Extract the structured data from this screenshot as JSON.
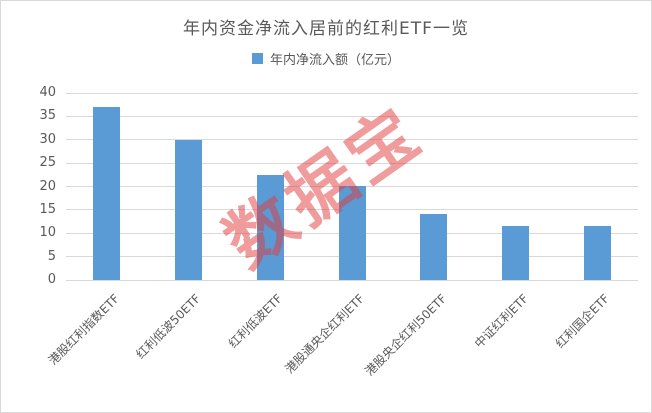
{
  "chart": {
    "title": "年内资金净流入居前的红利ETF一览",
    "legend_label": "年内净流入额（亿元）"
  },
  "watermark": {
    "text": "数据宝"
  },
  "colors": {
    "bar": "#5B9BD5",
    "grid": "#D9D9D9",
    "axis_text": "#595959",
    "title_text": "#595959",
    "watermark": "rgba(226,58,58,0.5)",
    "border": "#D9D9D9",
    "background": "#FFFFFF"
  },
  "chart_data": {
    "type": "bar",
    "title": "年内资金净流入居前的红利ETF一览",
    "legend": [
      "年内净流入额（亿元）"
    ],
    "legend_position": "top",
    "categories": [
      "港股红利指数ETF",
      "红利低波50ETF",
      "红利低波ETF",
      "港股通央企红利ETF",
      "港股央企红利50ETF",
      "中证红利ETF",
      "红利国企ETF"
    ],
    "series": [
      {
        "name": "年内净流入额（亿元）",
        "values": [
          37.0,
          30.0,
          22.5,
          20.2,
          14.2,
          11.6,
          11.6
        ]
      }
    ],
    "xlabel": "",
    "ylabel": "",
    "ylim": [
      0,
      40
    ],
    "yticks": [
      0,
      5,
      10,
      15,
      20,
      25,
      30,
      35,
      40
    ],
    "grid": true,
    "bar_color": "#5B9BD5",
    "unit": "亿元"
  }
}
